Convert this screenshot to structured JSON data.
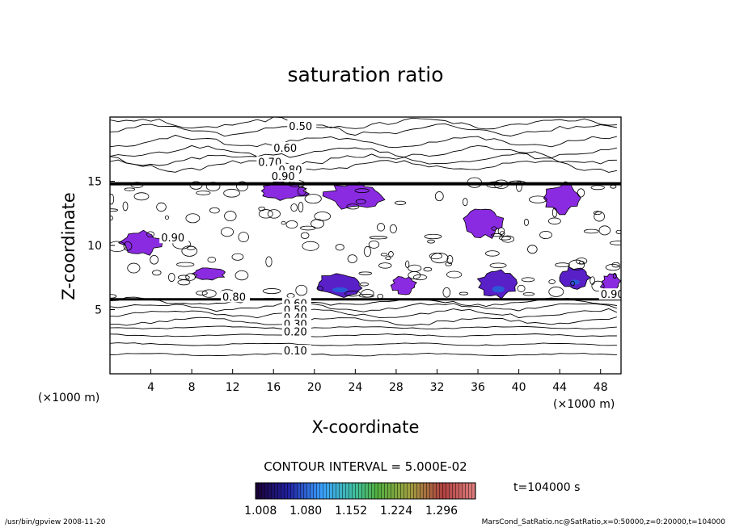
{
  "chart_data": {
    "type": "heatmap",
    "title": "saturation ratio",
    "xlabel": "X-coordinate",
    "ylabel": "Z-coordinate",
    "x_unit": "(×1000 m)",
    "y_unit": "(×1000 m)",
    "xlim": [
      0,
      50
    ],
    "ylim": [
      0,
      20
    ],
    "xticks": [
      4,
      8,
      12,
      16,
      20,
      24,
      28,
      32,
      36,
      40,
      44,
      48
    ],
    "yticks": [
      5,
      10,
      15
    ],
    "contour_labels": [
      {
        "text": "0.50",
        "x": 17.5,
        "z": 19.0
      },
      {
        "text": "0.60",
        "x": 16.0,
        "z": 17.3
      },
      {
        "text": "0.70",
        "x": 14.5,
        "z": 16.2
      },
      {
        "text": "0.80",
        "x": 16.5,
        "z": 15.6
      },
      {
        "text": "0.90",
        "x": 15.8,
        "z": 15.1
      },
      {
        "text": "0.90",
        "x": 5.0,
        "z": 10.3
      },
      {
        "text": "0.80",
        "x": 11.0,
        "z": 5.7
      },
      {
        "text": "0.60",
        "x": 17.0,
        "z": 5.2
      },
      {
        "text": "0.50",
        "x": 17.0,
        "z": 4.7
      },
      {
        "text": "0.40",
        "x": 17.0,
        "z": 4.1
      },
      {
        "text": "0.30",
        "x": 17.0,
        "z": 3.6
      },
      {
        "text": "0.20",
        "x": 17.0,
        "z": 3.0
      },
      {
        "text": "0.10",
        "x": 17.0,
        "z": 1.5
      },
      {
        "text": "0.90",
        "x": 48.0,
        "z": 5.9
      }
    ],
    "supersaturated_regions": [
      {
        "x": [
          1.0,
          5.0
        ],
        "z": [
          9.2,
          11.2
        ],
        "peak": 1.008
      },
      {
        "x": [
          14.5,
          19.5
        ],
        "z": [
          13.5,
          15.0
        ],
        "peak": 1.008
      },
      {
        "x": [
          21.0,
          27.0
        ],
        "z": [
          12.8,
          14.9
        ],
        "peak": 1.008
      },
      {
        "x": [
          34.5,
          38.5
        ],
        "z": [
          10.5,
          13.0
        ],
        "peak": 1.08
      },
      {
        "x": [
          42.5,
          46.0
        ],
        "z": [
          12.5,
          14.9
        ],
        "peak": 1.008
      },
      {
        "x": [
          20.0,
          25.0
        ],
        "z": [
          6.0,
          7.8
        ],
        "peak": 1.152
      },
      {
        "x": [
          27.5,
          30.0
        ],
        "z": [
          6.2,
          7.6
        ],
        "peak": 1.008
      },
      {
        "x": [
          36.0,
          40.0
        ],
        "z": [
          5.9,
          8.2
        ],
        "peak": 1.224
      },
      {
        "x": [
          44.0,
          47.0
        ],
        "z": [
          6.6,
          8.4
        ],
        "peak": 1.152
      },
      {
        "x": [
          48.0,
          50.0
        ],
        "z": [
          6.2,
          7.8
        ],
        "peak": 1.008
      },
      {
        "x": [
          8.0,
          11.5
        ],
        "z": [
          7.3,
          8.3
        ],
        "peak": 1.008
      }
    ],
    "contour_interval_text": "CONTOUR INTERVAL = 5.000E-02",
    "colorbar": {
      "ticks": [
        "1.008",
        "1.080",
        "1.152",
        "1.224",
        "1.296"
      ],
      "min": 1.0,
      "max": 1.35
    },
    "time_label": "t=104000 s",
    "footer_left": "/usr/bin/gpview   2008-11-20",
    "footer_right": "MarsCond_SatRatio.nc@SatRatio,x=0:50000,z=0:20000,t=104000"
  },
  "colors": {
    "fill_main": "#8a2be2",
    "fill_dark": "#5a20c8",
    "line": "#000000",
    "background": "#ffffff"
  }
}
